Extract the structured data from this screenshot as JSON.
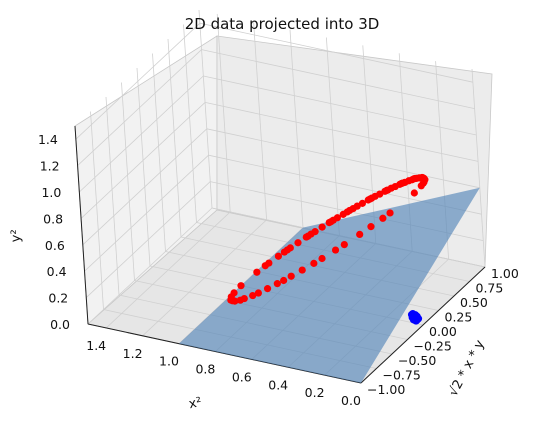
{
  "chart_data": {
    "type": "scatter",
    "title": "2D data projected into 3D",
    "xlabel": "x²",
    "ylabel": "√2 * x * y",
    "zlabel": "y²",
    "x_ticks": [
      "1.4",
      "1.2",
      "1.0",
      "0.8",
      "0.6",
      "0.4",
      "0.2",
      "0.0"
    ],
    "y_ticks": [
      "−1.00",
      "−0.75",
      "−0.50",
      "−0.25",
      "0.00",
      "0.25",
      "0.50",
      "0.75",
      "1.00"
    ],
    "z_ticks": [
      "0.0",
      "0.2",
      "0.4",
      "0.6",
      "0.8",
      "1.0",
      "1.2",
      "1.4"
    ],
    "xlim": [
      0.0,
      1.5
    ],
    "ylim": [
      -1.0,
      1.0
    ],
    "zlim": [
      0.0,
      1.5
    ],
    "grid": true,
    "colors": {
      "red": "#ff0000",
      "blue": "#0000ff",
      "plane": "#4a7fb5"
    },
    "series": [
      {
        "color": "red",
        "x": [
          1.0,
          0.95,
          0.9,
          0.85,
          0.8,
          0.75,
          0.7,
          0.65,
          0.6,
          0.55,
          0.5,
          0.45,
          0.4,
          0.35,
          0.3,
          0.25,
          0.2,
          0.15,
          0.1,
          0.05,
          0.02,
          0.0,
          0.03,
          0.08,
          0.12,
          0.18,
          0.22,
          0.28,
          0.32,
          0.38,
          0.42,
          0.48,
          0.52,
          0.58,
          0.62,
          0.68,
          0.72,
          0.78,
          0.82,
          0.88,
          0.92,
          0.98,
          0.97,
          0.93,
          0.86,
          0.77,
          0.66,
          0.54,
          0.46,
          0.34,
          0.24,
          0.14,
          0.06,
          0.04,
          0.1,
          0.2,
          0.3,
          0.4,
          0.5,
          0.6,
          0.7,
          0.8,
          0.9,
          0.99,
          0.96,
          0.89,
          0.81,
          0.71,
          0.63,
          0.51,
          0.41,
          0.31,
          0.21,
          0.11,
          0.01
        ],
        "y": [
          0.0,
          0.31,
          0.42,
          0.5,
          0.57,
          0.61,
          0.65,
          0.67,
          0.69,
          0.7,
          0.71,
          0.7,
          0.69,
          0.67,
          0.65,
          0.61,
          0.57,
          0.5,
          0.42,
          0.31,
          0.2,
          0.0,
          0.24,
          0.38,
          0.46,
          0.54,
          0.58,
          0.63,
          0.66,
          0.69,
          0.7,
          0.71,
          0.71,
          0.7,
          0.69,
          0.66,
          0.64,
          0.58,
          0.55,
          0.46,
          0.38,
          0.2,
          -0.24,
          -0.36,
          -0.49,
          -0.59,
          -0.67,
          -0.7,
          -0.7,
          -0.67,
          -0.6,
          -0.49,
          -0.34,
          -0.28,
          -0.42,
          -0.57,
          -0.65,
          -0.69,
          -0.71,
          -0.69,
          -0.65,
          -0.57,
          -0.42,
          -0.14,
          0.28,
          0.44,
          0.55,
          0.64,
          0.68,
          0.71,
          0.7,
          0.66,
          0.58,
          0.44,
          0.14
        ],
        "z": [
          0.0,
          0.05,
          0.1,
          0.15,
          0.2,
          0.25,
          0.3,
          0.35,
          0.4,
          0.45,
          0.5,
          0.55,
          0.6,
          0.65,
          0.7,
          0.75,
          0.8,
          0.85,
          0.9,
          0.95,
          0.98,
          1.0,
          0.97,
          0.92,
          0.88,
          0.82,
          0.78,
          0.72,
          0.68,
          0.62,
          0.58,
          0.52,
          0.48,
          0.42,
          0.38,
          0.32,
          0.28,
          0.22,
          0.18,
          0.12,
          0.08,
          0.02,
          0.03,
          0.07,
          0.14,
          0.23,
          0.34,
          0.46,
          0.54,
          0.66,
          0.76,
          0.86,
          0.94,
          0.96,
          0.9,
          0.8,
          0.7,
          0.6,
          0.5,
          0.4,
          0.3,
          0.2,
          0.1,
          0.01,
          0.04,
          0.11,
          0.19,
          0.29,
          0.37,
          0.49,
          0.59,
          0.69,
          0.79,
          0.89,
          0.99
        ]
      },
      {
        "color": "blue",
        "x": [
          0.04,
          0.05,
          0.03,
          0.06,
          0.04,
          0.05,
          0.03,
          0.04,
          0.06,
          0.05,
          0.04,
          0.03,
          0.05,
          0.04,
          0.06,
          0.05,
          0.04,
          0.03
        ],
        "y": [
          0.0,
          0.02,
          -0.02,
          0.01,
          -0.01,
          0.03,
          0.0,
          -0.03,
          0.02,
          -0.02,
          0.01,
          0.02,
          0.0,
          -0.01,
          0.0,
          0.01,
          0.03,
          -0.01
        ],
        "z": [
          0.04,
          0.05,
          0.03,
          0.06,
          0.04,
          0.05,
          0.03,
          0.04,
          0.06,
          0.05,
          0.04,
          0.03,
          0.05,
          0.04,
          0.06,
          0.05,
          0.04,
          0.03
        ]
      }
    ],
    "plane": {
      "corners": [
        {
          "x": 1.0,
          "y": -1.0,
          "z": 0.0
        },
        {
          "x": 0.0,
          "y": -1.0,
          "z": 0.0
        },
        {
          "x": 0.0,
          "y": 1.0,
          "z": 0.6
        },
        {
          "x": 1.0,
          "y": 1.0,
          "z": 0.0
        }
      ]
    }
  }
}
